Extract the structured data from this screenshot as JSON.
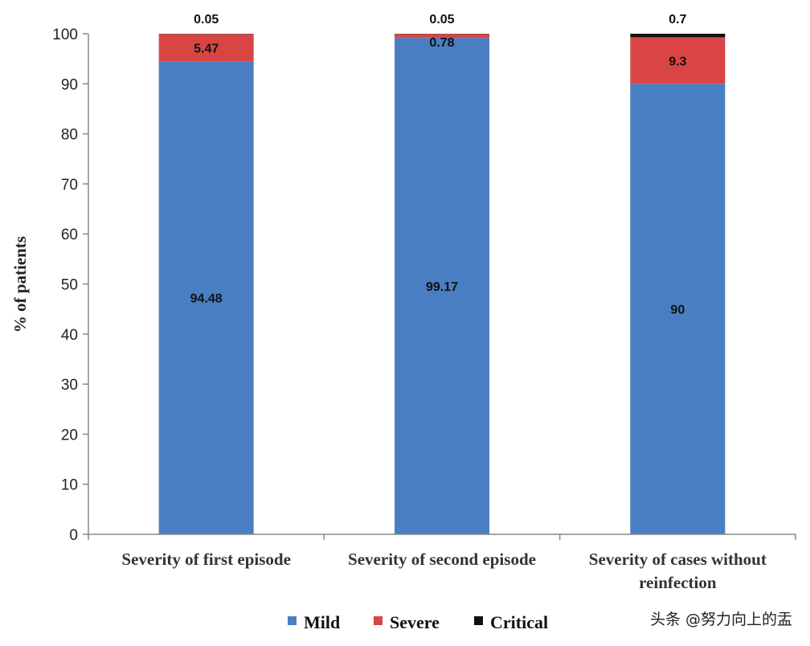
{
  "chart_data": {
    "type": "bar",
    "stacked": true,
    "categories": [
      "Severity of first episode",
      "Severity of second episode",
      "Severity of cases without reinfection"
    ],
    "series": [
      {
        "name": "Mild",
        "color": "#4a7ec2",
        "values": [
          94.48,
          99.17,
          90
        ]
      },
      {
        "name": "Severe",
        "color": "#d94545",
        "values": [
          5.47,
          0.78,
          9.3
        ]
      },
      {
        "name": "Critical",
        "color": "#111111",
        "values": [
          0.05,
          0.05,
          0.7
        ]
      }
    ],
    "ylabel": "% of patients",
    "ylim": [
      0,
      100
    ],
    "yticks": [
      0,
      10,
      20,
      30,
      40,
      50,
      60,
      70,
      80,
      90,
      100
    ],
    "legend": "bottom",
    "grid": false
  },
  "watermark": "头条 @努力向上的盂"
}
